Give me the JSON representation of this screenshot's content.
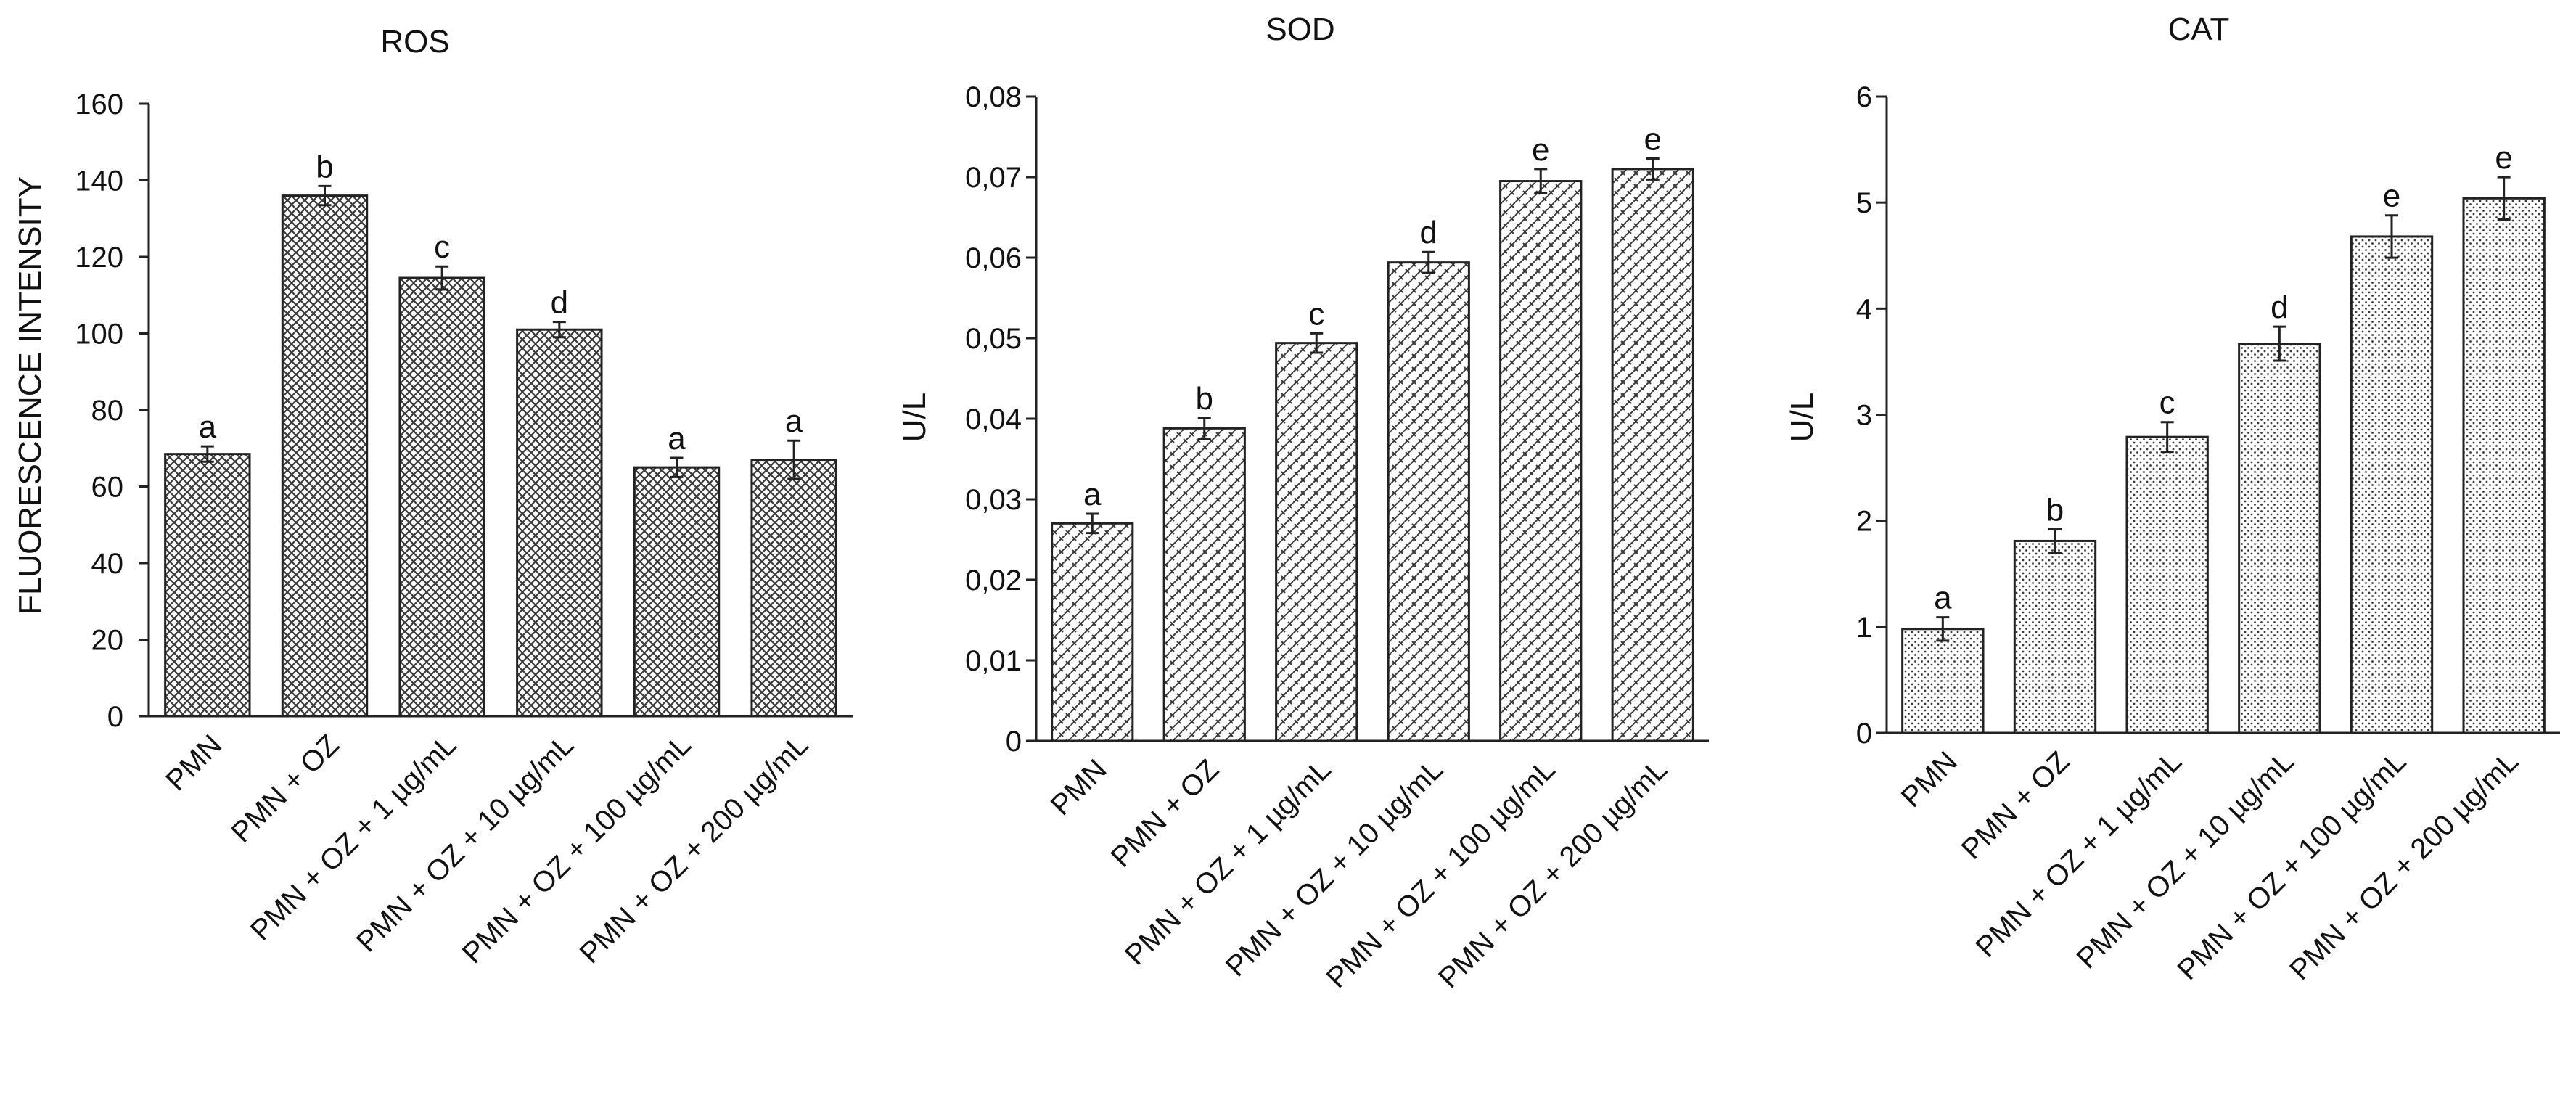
{
  "colors": {
    "ink": "#222222",
    "background": "#ffffff",
    "pattern_fill": "#3a3a3a"
  },
  "chart_data": [
    {
      "type": "bar",
      "title": "ROS",
      "ylabel": "FLUORESCENCE INTENSITY",
      "xlabel": "",
      "ylim": [
        0,
        160
      ],
      "yticks": [
        0,
        20,
        40,
        60,
        80,
        100,
        120,
        140,
        160
      ],
      "ytick_labels": [
        "0",
        "20",
        "40",
        "60",
        "80",
        "100",
        "120",
        "140",
        "160"
      ],
      "categories": [
        "PMN",
        "PMN + OZ",
        "PMN + OZ + 1  µg/mL",
        "PMN + OZ + 10  µg/mL",
        "PMN + OZ + 100  µg/mL",
        "PMN + OZ + 200  µg/mL"
      ],
      "values": [
        68.5,
        136,
        114.5,
        101,
        65,
        67
      ],
      "errors": [
        2,
        2.5,
        3,
        2,
        2.5,
        5
      ],
      "significance": [
        "a",
        "b",
        "c",
        "d",
        "a",
        "a"
      ],
      "pattern": "crosshatch",
      "grid": false
    },
    {
      "type": "bar",
      "title": "SOD",
      "ylabel": "U/L",
      "xlabel": "",
      "ylim": [
        0,
        0.08
      ],
      "yticks": [
        0,
        0.01,
        0.02,
        0.03,
        0.04,
        0.05,
        0.06,
        0.07,
        0.08
      ],
      "ytick_labels": [
        "0",
        "0,01",
        "0,02",
        "0,03",
        "0,04",
        "0,05",
        "0,06",
        "0,07",
        "0,08"
      ],
      "categories": [
        "PMN",
        "PMN + OZ",
        "PMN + OZ + 1  µg/mL",
        "PMN + OZ + 10  µg/mL",
        "PMN + OZ + 100  µg/mL",
        "PMN + OZ + 200  µg/mL"
      ],
      "values": [
        0.027,
        0.0388,
        0.0494,
        0.0594,
        0.0695,
        0.071
      ],
      "errors": [
        0.0012,
        0.0013,
        0.0012,
        0.0013,
        0.0015,
        0.0013
      ],
      "significance": [
        "a",
        "b",
        "c",
        "d",
        "e",
        "e"
      ],
      "pattern": "weave",
      "grid": false
    },
    {
      "type": "bar",
      "title": "CAT",
      "ylabel": "U/L",
      "xlabel": "",
      "ylim": [
        0,
        6
      ],
      "yticks": [
        0,
        1,
        2,
        3,
        4,
        5,
        6
      ],
      "ytick_labels": [
        "0",
        "1",
        "2",
        "3",
        "4",
        "5",
        "6"
      ],
      "categories": [
        "PMN",
        "PMN + OZ",
        "PMN + OZ + 1  µg/mL",
        "PMN + OZ + 10  µg/mL",
        "PMN + OZ + 100  µg/mL",
        "PMN + OZ + 200  µg/mL"
      ],
      "values": [
        0.98,
        1.81,
        2.79,
        3.67,
        4.68,
        5.04
      ],
      "errors": [
        0.11,
        0.11,
        0.14,
        0.16,
        0.2,
        0.2
      ],
      "significance": [
        "a",
        "b",
        "c",
        "d",
        "e",
        "e"
      ],
      "pattern": "dots",
      "grid": false
    }
  ]
}
